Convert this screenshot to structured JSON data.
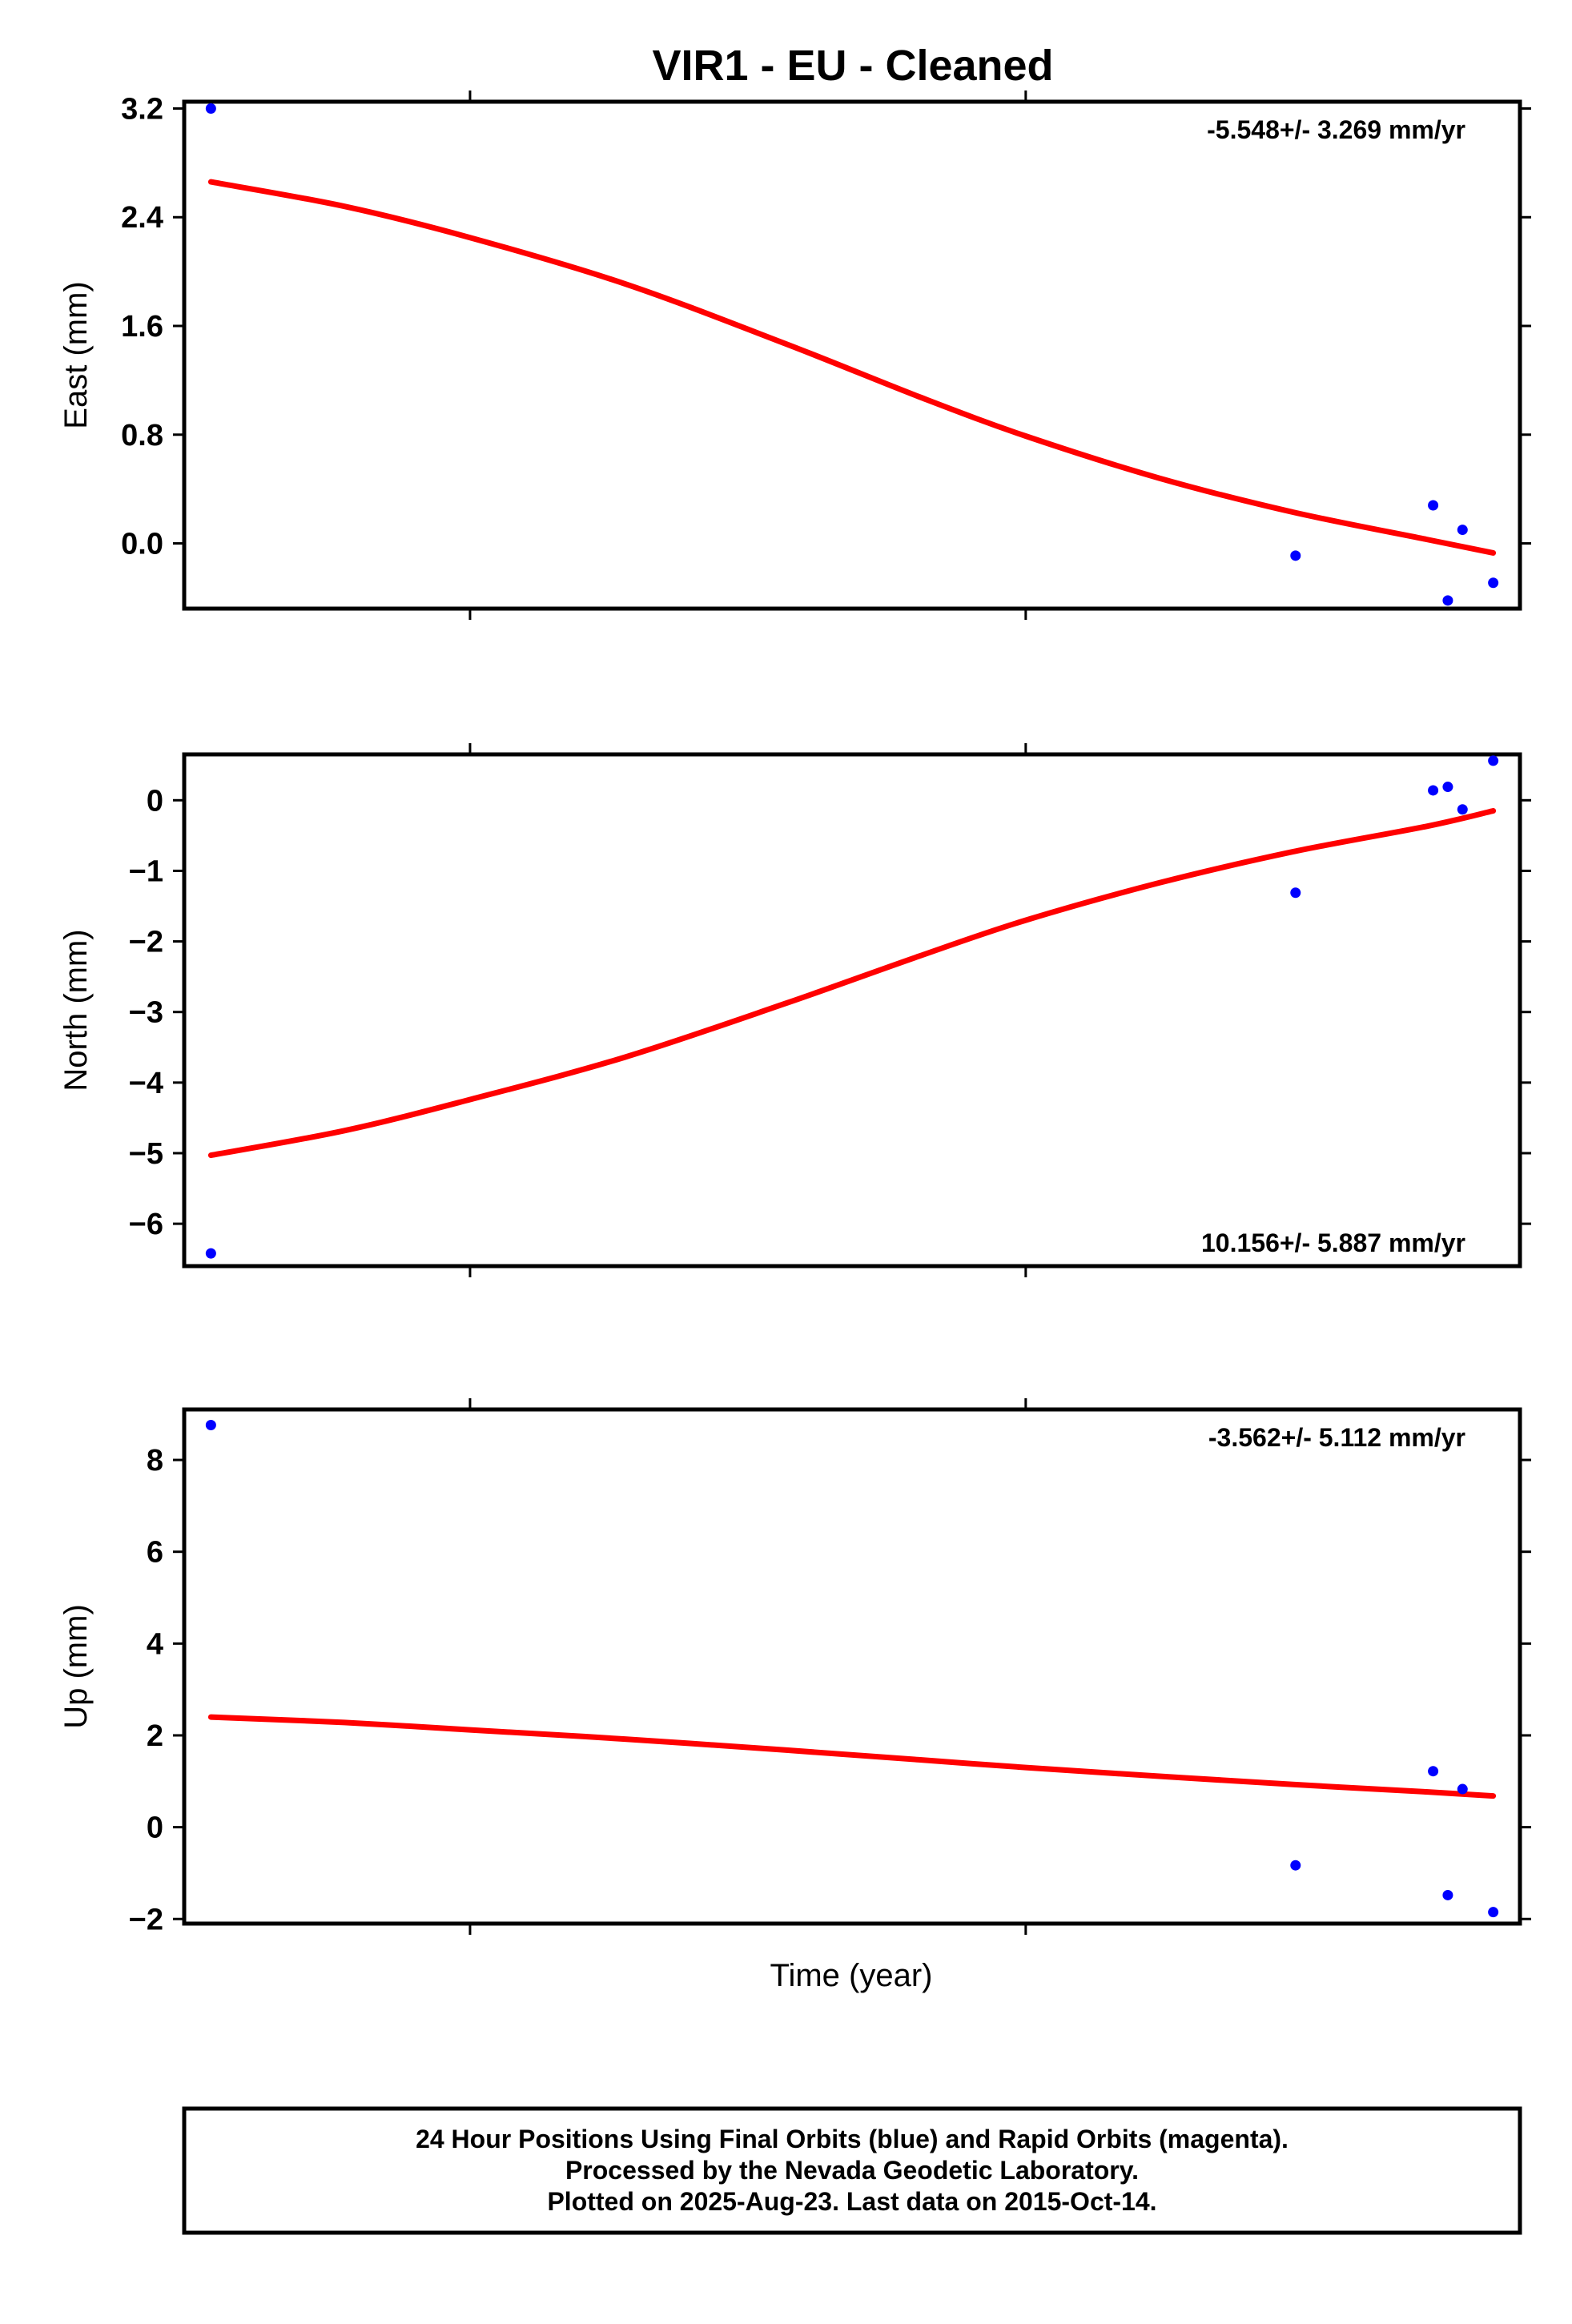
{
  "title": "VIR1  - EU - Cleaned",
  "xlabel": "Time (year)",
  "footer": {
    "line1": "24 Hour Positions Using Final Orbits (blue) and Rapid Orbits (magenta).",
    "line2": "Processed by the Nevada Geodetic Laboratory.",
    "line3": "Plotted on 2025-Aug-23. Last data on 2015-Oct-14."
  },
  "colors": {
    "final_orbit_points": "#0000ff",
    "fit_curve": "#ff0000",
    "frame": "#000000"
  },
  "chart_data": [
    {
      "type": "scatter",
      "ylabel": "East (mm)",
      "rate": "-5.548+/- 3.269 mm/yr",
      "rate_position": "top-right",
      "ylim": [
        -0.48,
        3.25
      ],
      "yticks": [
        0.0,
        0.8,
        1.6,
        2.4,
        3.2
      ],
      "yticklabels": [
        "0.0",
        "0.8",
        "1.6",
        "2.4",
        "3.2"
      ],
      "xlim": [
        0,
        1
      ],
      "xticks": [
        0.214,
        0.63
      ],
      "points": [
        {
          "x": 0.02,
          "y": 3.2
        },
        {
          "x": 0.832,
          "y": -0.09
        },
        {
          "x": 0.935,
          "y": 0.28
        },
        {
          "x": 0.946,
          "y": -0.42
        },
        {
          "x": 0.957,
          "y": 0.1
        },
        {
          "x": 0.98,
          "y": -0.29
        }
      ],
      "fit": [
        {
          "x": 0.02,
          "y": 2.66
        },
        {
          "x": 0.12,
          "y": 2.48
        },
        {
          "x": 0.214,
          "y": 2.25
        },
        {
          "x": 0.33,
          "y": 1.91
        },
        {
          "x": 0.45,
          "y": 1.47
        },
        {
          "x": 0.55,
          "y": 1.08
        },
        {
          "x": 0.63,
          "y": 0.79
        },
        {
          "x": 0.73,
          "y": 0.48
        },
        {
          "x": 0.83,
          "y": 0.23
        },
        {
          "x": 0.93,
          "y": 0.03
        },
        {
          "x": 0.98,
          "y": -0.07
        }
      ]
    },
    {
      "type": "scatter",
      "ylabel": "North (mm)",
      "rate": "10.156+/- 5.887 mm/yr",
      "rate_position": "bottom-right",
      "ylim": [
        -6.6,
        0.65
      ],
      "yticks": [
        0,
        -1,
        -2,
        -3,
        -4,
        -5,
        -6
      ],
      "yticklabels": [
        "0",
        "−1",
        "−2",
        "−3",
        "−4",
        "−5",
        "−6"
      ],
      "xlim": [
        0,
        1
      ],
      "xticks": [
        0.214,
        0.63
      ],
      "points": [
        {
          "x": 0.02,
          "y": -6.42
        },
        {
          "x": 0.832,
          "y": -1.31
        },
        {
          "x": 0.935,
          "y": 0.14
        },
        {
          "x": 0.946,
          "y": 0.19
        },
        {
          "x": 0.957,
          "y": -0.13
        },
        {
          "x": 0.98,
          "y": 0.56
        }
      ],
      "fit": [
        {
          "x": 0.02,
          "y": -5.03
        },
        {
          "x": 0.12,
          "y": -4.68
        },
        {
          "x": 0.214,
          "y": -4.24
        },
        {
          "x": 0.33,
          "y": -3.64
        },
        {
          "x": 0.45,
          "y": -2.88
        },
        {
          "x": 0.55,
          "y": -2.21
        },
        {
          "x": 0.63,
          "y": -1.7
        },
        {
          "x": 0.73,
          "y": -1.17
        },
        {
          "x": 0.83,
          "y": -0.73
        },
        {
          "x": 0.93,
          "y": -0.37
        },
        {
          "x": 0.98,
          "y": -0.15
        }
      ]
    },
    {
      "type": "scatter",
      "ylabel": "Up (mm)",
      "rate": "-3.562+/- 5.112 mm/yr",
      "rate_position": "top-right",
      "ylim": [
        -2.1,
        9.1
      ],
      "yticks": [
        -2,
        0,
        2,
        4,
        6,
        8
      ],
      "yticklabels": [
        "−2",
        "0",
        "2",
        "4",
        "6",
        "8"
      ],
      "xlim": [
        0,
        1
      ],
      "xticks": [
        0.214,
        0.63
      ],
      "points": [
        {
          "x": 0.02,
          "y": 8.76
        },
        {
          "x": 0.832,
          "y": -0.83
        },
        {
          "x": 0.935,
          "y": 1.22
        },
        {
          "x": 0.946,
          "y": -1.48
        },
        {
          "x": 0.957,
          "y": 0.83
        },
        {
          "x": 0.98,
          "y": -1.85
        }
      ],
      "fit": [
        {
          "x": 0.02,
          "y": 2.4
        },
        {
          "x": 0.12,
          "y": 2.28
        },
        {
          "x": 0.214,
          "y": 2.12
        },
        {
          "x": 0.33,
          "y": 1.92
        },
        {
          "x": 0.45,
          "y": 1.68
        },
        {
          "x": 0.55,
          "y": 1.47
        },
        {
          "x": 0.63,
          "y": 1.3
        },
        {
          "x": 0.73,
          "y": 1.11
        },
        {
          "x": 0.83,
          "y": 0.93
        },
        {
          "x": 0.93,
          "y": 0.77
        },
        {
          "x": 0.98,
          "y": 0.68
        }
      ]
    }
  ]
}
